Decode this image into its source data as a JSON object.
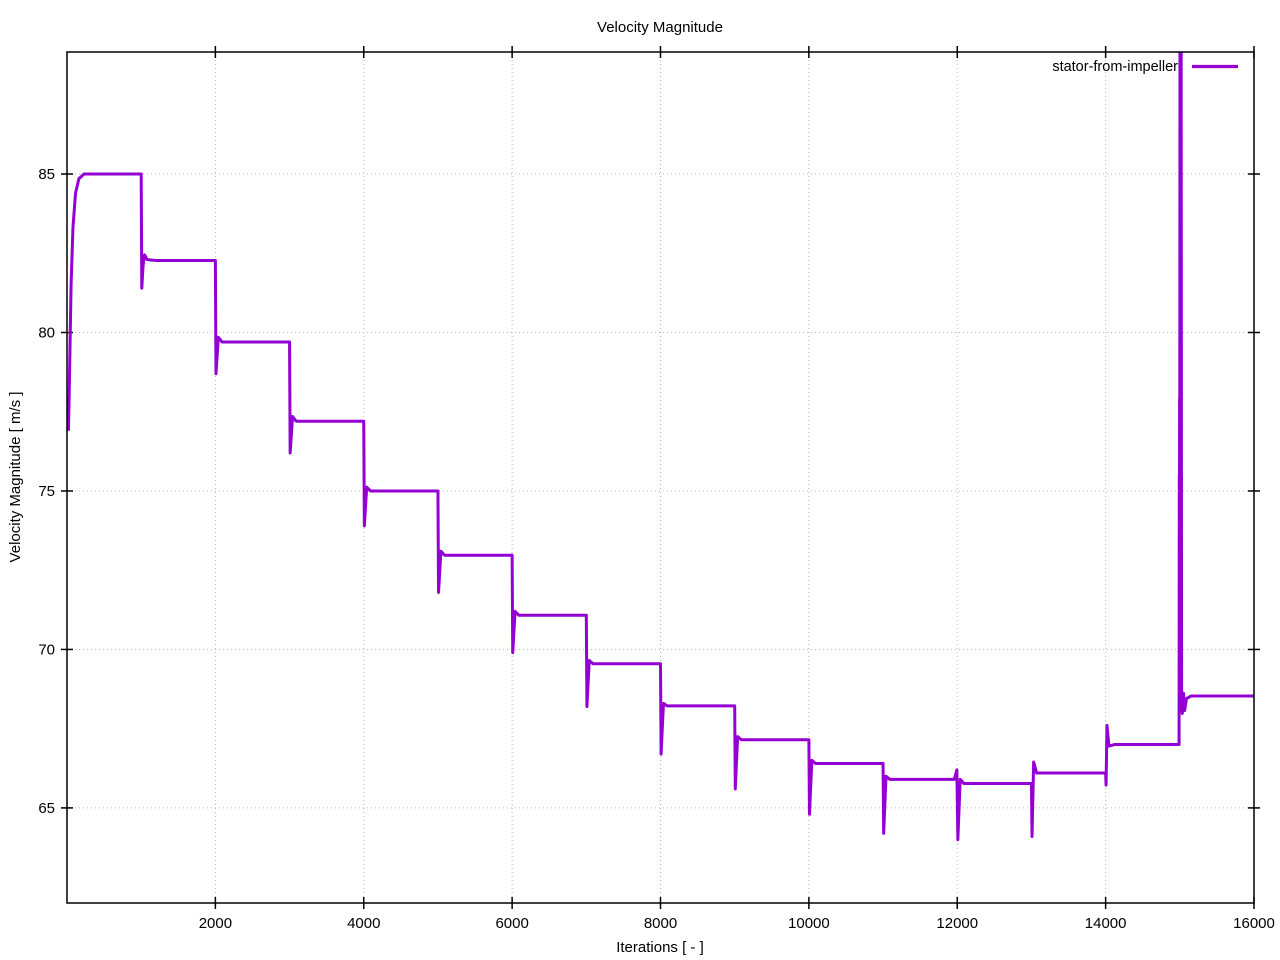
{
  "chart_data": {
    "type": "line",
    "title": "Velocity Magnitude",
    "xlabel": "Iterations [ - ]",
    "ylabel": "Velocity Magnitude [ m/s ]",
    "xlim": [
      0,
      16000
    ],
    "ylim": [
      62.0,
      88.85
    ],
    "x_ticks": [
      2000,
      4000,
      6000,
      8000,
      10000,
      12000,
      14000,
      16000
    ],
    "y_ticks": [
      65,
      70,
      75,
      80,
      85
    ],
    "grid": true,
    "grid_style": "dotted",
    "grid_color": "#b8b8b8",
    "border_color": "#000000",
    "legend_position": "top-right-inside",
    "series": [
      {
        "name": "stator-from-impeller",
        "color": "#9400d3",
        "points": [
          [
            20,
            76.9
          ],
          [
            35,
            78.8
          ],
          [
            55,
            81.5
          ],
          [
            80,
            83.3
          ],
          [
            115,
            84.4
          ],
          [
            160,
            84.85
          ],
          [
            230,
            85.0
          ],
          [
            1000,
            85.0
          ],
          [
            1008,
            81.4
          ],
          [
            1025,
            82.1
          ],
          [
            1045,
            82.45
          ],
          [
            1080,
            82.3
          ],
          [
            1200,
            82.27
          ],
          [
            2000,
            82.27
          ],
          [
            2008,
            78.7
          ],
          [
            2040,
            79.85
          ],
          [
            2090,
            79.7
          ],
          [
            3000,
            79.7
          ],
          [
            3008,
            76.2
          ],
          [
            3040,
            77.35
          ],
          [
            3090,
            77.2
          ],
          [
            4000,
            77.2
          ],
          [
            4008,
            73.9
          ],
          [
            4040,
            75.12
          ],
          [
            4090,
            75.0
          ],
          [
            5000,
            75.0
          ],
          [
            5008,
            71.8
          ],
          [
            5040,
            73.1
          ],
          [
            5090,
            72.97
          ],
          [
            6000,
            72.97
          ],
          [
            6008,
            69.9
          ],
          [
            6040,
            71.2
          ],
          [
            6090,
            71.08
          ],
          [
            7000,
            71.08
          ],
          [
            7008,
            68.2
          ],
          [
            7040,
            69.65
          ],
          [
            7090,
            69.55
          ],
          [
            8000,
            69.55
          ],
          [
            8008,
            66.7
          ],
          [
            8040,
            68.3
          ],
          [
            8090,
            68.22
          ],
          [
            9000,
            68.22
          ],
          [
            9008,
            65.6
          ],
          [
            9040,
            67.25
          ],
          [
            9090,
            67.15
          ],
          [
            10000,
            67.15
          ],
          [
            10008,
            64.8
          ],
          [
            10040,
            66.5
          ],
          [
            10090,
            66.4
          ],
          [
            11000,
            66.4
          ],
          [
            11008,
            64.2
          ],
          [
            11040,
            66.0
          ],
          [
            11090,
            65.9
          ],
          [
            11960,
            65.9
          ],
          [
            11995,
            66.2
          ],
          [
            12008,
            64.0
          ],
          [
            12040,
            65.9
          ],
          [
            12090,
            65.77
          ],
          [
            13000,
            65.77
          ],
          [
            13008,
            64.1
          ],
          [
            13030,
            66.45
          ],
          [
            13070,
            66.1
          ],
          [
            14000,
            66.1
          ],
          [
            14006,
            65.72
          ],
          [
            14018,
            67.6
          ],
          [
            14045,
            66.95
          ],
          [
            14120,
            67.0
          ],
          [
            14985,
            67.0
          ],
          [
            14990,
            67.0
          ],
          [
            14993,
            75.5
          ],
          [
            14995,
            73.5
          ],
          [
            14997,
            77.9
          ],
          [
            14999,
            74.5
          ],
          [
            15002,
            88.9
          ],
          [
            15006,
            73.9
          ],
          [
            15010,
            88.9
          ],
          [
            15014,
            70.3
          ],
          [
            15018,
            88.9
          ],
          [
            15024,
            68.3
          ],
          [
            15034,
            67.98
          ],
          [
            15050,
            68.62
          ],
          [
            15065,
            68.07
          ],
          [
            15090,
            68.45
          ],
          [
            15150,
            68.53
          ],
          [
            16000,
            68.53
          ]
        ]
      }
    ]
  }
}
